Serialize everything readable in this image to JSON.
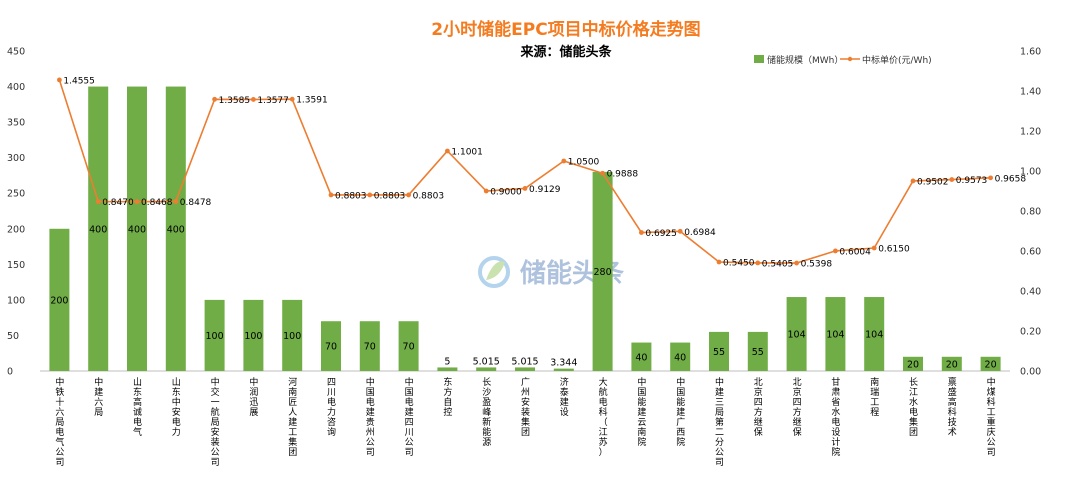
{
  "chart_data": {
    "type": "bar",
    "title": "2小时储能EPC项目中标价格走势图",
    "subtitle": "来源：储能头条",
    "watermark": "储能头条",
    "categories": [
      "中铁十六局电气公司",
      "中建六局",
      "山东高诚电气",
      "山东中安电力",
      "中交一航局安装公司",
      "中润迅展",
      "河南匠人建工集团",
      "四川电力咨询",
      "中国电建贵州公司",
      "中国电建四川公司",
      "东方自控",
      "长沙盈峰新能源",
      "广州安装集团",
      "济泰建设",
      "大航电科（江苏）",
      "中国能建云南院",
      "中国能建广西院",
      "中建三局第二分公司",
      "北京四方继保",
      "北京四方继保",
      "甘肃省水电设计院",
      "南瑞工程",
      "长江水电集团",
      "禀盛高科技术",
      "中煤科工重庆公司"
    ],
    "series": [
      {
        "name": "储能规模（MWh）",
        "chart": "bar",
        "axis": "left",
        "color": "#70ad47",
        "values": [
          200,
          400,
          400,
          400,
          100,
          100,
          100,
          70,
          70,
          70,
          5,
          5.015,
          5.015,
          3.344,
          280,
          40,
          40,
          55,
          55,
          104,
          104,
          104,
          20,
          20,
          20
        ],
        "labels": [
          "200",
          "400",
          "400",
          "400",
          "100",
          "100",
          "100",
          "70",
          "70",
          "70",
          "5",
          "5.015",
          "5.015",
          "3.344",
          "280",
          "40",
          "40",
          "55",
          "55",
          "104",
          "104",
          "104",
          "20",
          "20",
          "20"
        ]
      },
      {
        "name": "中标单价(元/Wh)",
        "chart": "line",
        "axis": "right",
        "color": "#ed7d31",
        "values": [
          1.4555,
          0.847,
          0.8468,
          0.8478,
          1.3585,
          1.3577,
          1.3591,
          0.8803,
          0.8803,
          0.8803,
          1.1001,
          0.9,
          0.9129,
          1.05,
          0.9888,
          0.6925,
          0.6984,
          0.545,
          0.5405,
          0.5398,
          0.6004,
          0.615,
          0.9502,
          0.9573,
          0.9658
        ],
        "labels": [
          "1.4555",
          "0.8470",
          "0.8468",
          "0.8478",
          "1.3585",
          "1.3577",
          "1.3591",
          "0.8803",
          "0.8803",
          "0.8803",
          "1.1001",
          "0.9000",
          "0.9129",
          "1.0500",
          "0.9888",
          "0.6925",
          "0.6984",
          "0.5450",
          "0.5405",
          "0.5398",
          "0.6004",
          "0.6150",
          "0.9502",
          "0.9573",
          "0.9658"
        ]
      }
    ],
    "y_left": {
      "min": 0,
      "max": 450,
      "ticks": [
        "0",
        "50",
        "100",
        "150",
        "200",
        "250",
        "300",
        "350",
        "400",
        "450"
      ]
    },
    "y_right": {
      "min": 0,
      "max": 1.6,
      "ticks": [
        "0.00",
        "0.20",
        "0.40",
        "0.60",
        "0.80",
        "1.00",
        "1.20",
        "1.40",
        "1.60"
      ]
    },
    "legend_position": "top-right",
    "grid": false,
    "colors": {
      "title": "#f47b20",
      "subtitle": "#000000",
      "axis": "#bfbfbf",
      "watermark": "#4d7ab8"
    }
  }
}
